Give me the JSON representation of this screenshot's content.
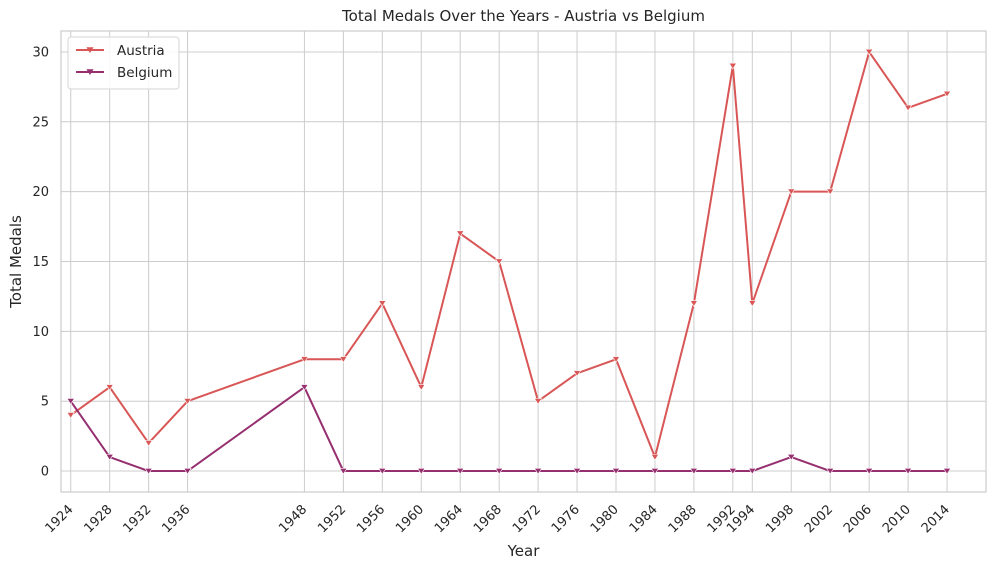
{
  "chart_data": {
    "type": "line",
    "title": "Total Medals Over the Years - Austria vs Belgium",
    "xlabel": "Year",
    "ylabel": "Total Medals",
    "x": [
      1924,
      1928,
      1932,
      1936,
      1948,
      1952,
      1956,
      1960,
      1964,
      1968,
      1972,
      1976,
      1980,
      1984,
      1988,
      1992,
      1994,
      1998,
      2002,
      2006,
      2010,
      2014
    ],
    "x_tick_labels": [
      "1924",
      "1928",
      "1932",
      "1936",
      "1948",
      "1952",
      "1956",
      "1960",
      "1964",
      "1968",
      "1972",
      "1976",
      "1980",
      "1984",
      "1988",
      "1992",
      "1994",
      "1998",
      "2002",
      "2006",
      "2010",
      "2014"
    ],
    "xlim": [
      1923,
      2018
    ],
    "ylim": [
      -1.5,
      31.5
    ],
    "yticks": [
      0,
      5,
      10,
      15,
      20,
      25,
      30
    ],
    "grid": true,
    "legend_position": "top-left",
    "marker": "triangle-down",
    "series": [
      {
        "name": "Austria",
        "color": "#d95656",
        "values": [
          4,
          6,
          2,
          5,
          8,
          8,
          12,
          6,
          17,
          15,
          5,
          7,
          8,
          1,
          12,
          29,
          12,
          20,
          20,
          30,
          26,
          27
        ]
      },
      {
        "name": "Belgium",
        "color": "#962f6f",
        "values": [
          5,
          1,
          0,
          0,
          6,
          0,
          0,
          0,
          0,
          0,
          0,
          0,
          0,
          0,
          0,
          0,
          0,
          1,
          0,
          0,
          0,
          0
        ]
      }
    ]
  }
}
